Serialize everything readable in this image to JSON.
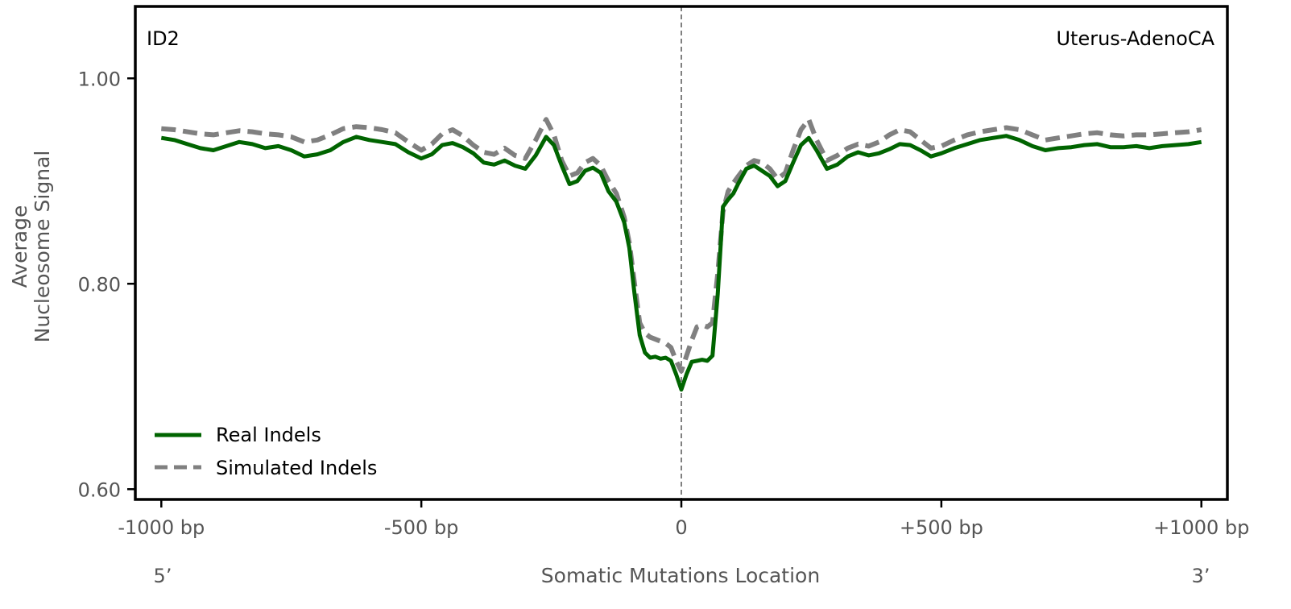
{
  "chart_data": {
    "type": "line",
    "panel_label": "ID2",
    "cancer_type": "Uterus-AdenoCA",
    "xlabel": "Somatic Mutations Location",
    "ylabel_line1": "Average",
    "ylabel_line2": "Nucleosome Signal",
    "x_end_left": "5’",
    "x_end_right": "3’",
    "xlim": [
      -1050,
      1050
    ],
    "ylim": [
      0.59,
      1.07
    ],
    "xticks": [
      {
        "value": -1000,
        "label": "-1000 bp"
      },
      {
        "value": -500,
        "label": "-500 bp"
      },
      {
        "value": 0,
        "label": "0"
      },
      {
        "value": 500,
        "label": "+500 bp"
      },
      {
        "value": 1000,
        "label": "+1000 bp"
      }
    ],
    "yticks": [
      {
        "value": 0.6,
        "label": "0.60"
      },
      {
        "value": 0.8,
        "label": "0.80"
      },
      {
        "value": 1.0,
        "label": "1.00"
      }
    ],
    "reference_line_x": 0,
    "legend_position": "lower-left",
    "series": [
      {
        "name": "Real Indels",
        "color": "#006400",
        "style": "solid",
        "x": [
          -1000,
          -975,
          -950,
          -925,
          -900,
          -875,
          -850,
          -825,
          -800,
          -775,
          -750,
          -725,
          -700,
          -675,
          -650,
          -625,
          -600,
          -575,
          -550,
          -525,
          -500,
          -480,
          -460,
          -440,
          -420,
          -400,
          -380,
          -360,
          -340,
          -320,
          -300,
          -280,
          -260,
          -245,
          -230,
          -215,
          -200,
          -185,
          -170,
          -155,
          -140,
          -125,
          -110,
          -100,
          -90,
          -80,
          -70,
          -60,
          -50,
          -40,
          -30,
          -20,
          -10,
          0,
          10,
          20,
          30,
          40,
          50,
          60,
          70,
          80,
          90,
          100,
          110,
          125,
          140,
          155,
          170,
          185,
          200,
          215,
          230,
          245,
          260,
          280,
          300,
          320,
          340,
          360,
          380,
          400,
          420,
          440,
          460,
          480,
          500,
          525,
          550,
          575,
          600,
          625,
          650,
          675,
          700,
          725,
          750,
          775,
          800,
          825,
          850,
          875,
          900,
          925,
          950,
          975,
          1000
        ],
        "y": [
          0.942,
          0.94,
          0.936,
          0.932,
          0.93,
          0.934,
          0.938,
          0.936,
          0.932,
          0.934,
          0.93,
          0.924,
          0.926,
          0.93,
          0.938,
          0.943,
          0.94,
          0.938,
          0.936,
          0.928,
          0.922,
          0.926,
          0.935,
          0.937,
          0.933,
          0.927,
          0.918,
          0.916,
          0.92,
          0.915,
          0.912,
          0.925,
          0.943,
          0.935,
          0.915,
          0.897,
          0.9,
          0.91,
          0.913,
          0.908,
          0.89,
          0.88,
          0.86,
          0.835,
          0.79,
          0.75,
          0.733,
          0.728,
          0.729,
          0.727,
          0.728,
          0.725,
          0.712,
          0.697,
          0.712,
          0.724,
          0.725,
          0.726,
          0.725,
          0.73,
          0.79,
          0.875,
          0.882,
          0.888,
          0.898,
          0.912,
          0.915,
          0.91,
          0.905,
          0.895,
          0.9,
          0.918,
          0.935,
          0.942,
          0.93,
          0.912,
          0.916,
          0.924,
          0.928,
          0.925,
          0.927,
          0.931,
          0.936,
          0.935,
          0.93,
          0.924,
          0.927,
          0.932,
          0.936,
          0.94,
          0.942,
          0.944,
          0.94,
          0.934,
          0.93,
          0.932,
          0.933,
          0.935,
          0.936,
          0.933,
          0.933,
          0.934,
          0.932,
          0.934,
          0.935,
          0.936,
          0.938
        ]
      },
      {
        "name": "Simulated Indels",
        "color": "#808080",
        "style": "dashed",
        "x": [
          -1000,
          -975,
          -950,
          -925,
          -900,
          -875,
          -850,
          -825,
          -800,
          -775,
          -750,
          -725,
          -700,
          -675,
          -650,
          -625,
          -600,
          -575,
          -550,
          -525,
          -500,
          -480,
          -460,
          -440,
          -420,
          -400,
          -380,
          -360,
          -340,
          -320,
          -300,
          -280,
          -260,
          -245,
          -230,
          -215,
          -200,
          -185,
          -170,
          -155,
          -140,
          -125,
          -110,
          -100,
          -90,
          -80,
          -70,
          -60,
          -50,
          -40,
          -30,
          -20,
          -10,
          0,
          10,
          20,
          30,
          40,
          50,
          60,
          70,
          80,
          90,
          100,
          110,
          125,
          140,
          155,
          170,
          185,
          200,
          215,
          230,
          245,
          260,
          280,
          300,
          320,
          340,
          360,
          380,
          400,
          420,
          440,
          460,
          480,
          500,
          525,
          550,
          575,
          600,
          625,
          650,
          675,
          700,
          725,
          750,
          775,
          800,
          825,
          850,
          875,
          900,
          925,
          950,
          975,
          1000
        ],
        "y": [
          0.951,
          0.95,
          0.948,
          0.946,
          0.945,
          0.947,
          0.949,
          0.948,
          0.946,
          0.945,
          0.943,
          0.938,
          0.94,
          0.945,
          0.951,
          0.953,
          0.952,
          0.95,
          0.947,
          0.938,
          0.93,
          0.936,
          0.946,
          0.95,
          0.944,
          0.935,
          0.928,
          0.926,
          0.932,
          0.925,
          0.922,
          0.94,
          0.96,
          0.945,
          0.92,
          0.905,
          0.908,
          0.918,
          0.922,
          0.915,
          0.9,
          0.888,
          0.865,
          0.84,
          0.8,
          0.762,
          0.752,
          0.748,
          0.746,
          0.744,
          0.742,
          0.738,
          0.725,
          0.715,
          0.73,
          0.745,
          0.758,
          0.76,
          0.758,
          0.762,
          0.81,
          0.87,
          0.89,
          0.898,
          0.905,
          0.915,
          0.92,
          0.918,
          0.912,
          0.902,
          0.908,
          0.93,
          0.95,
          0.96,
          0.94,
          0.92,
          0.925,
          0.932,
          0.936,
          0.934,
          0.938,
          0.945,
          0.95,
          0.948,
          0.94,
          0.932,
          0.934,
          0.94,
          0.945,
          0.948,
          0.95,
          0.952,
          0.95,
          0.945,
          0.94,
          0.942,
          0.944,
          0.946,
          0.947,
          0.945,
          0.944,
          0.945,
          0.945,
          0.946,
          0.947,
          0.948,
          0.95
        ]
      }
    ]
  }
}
